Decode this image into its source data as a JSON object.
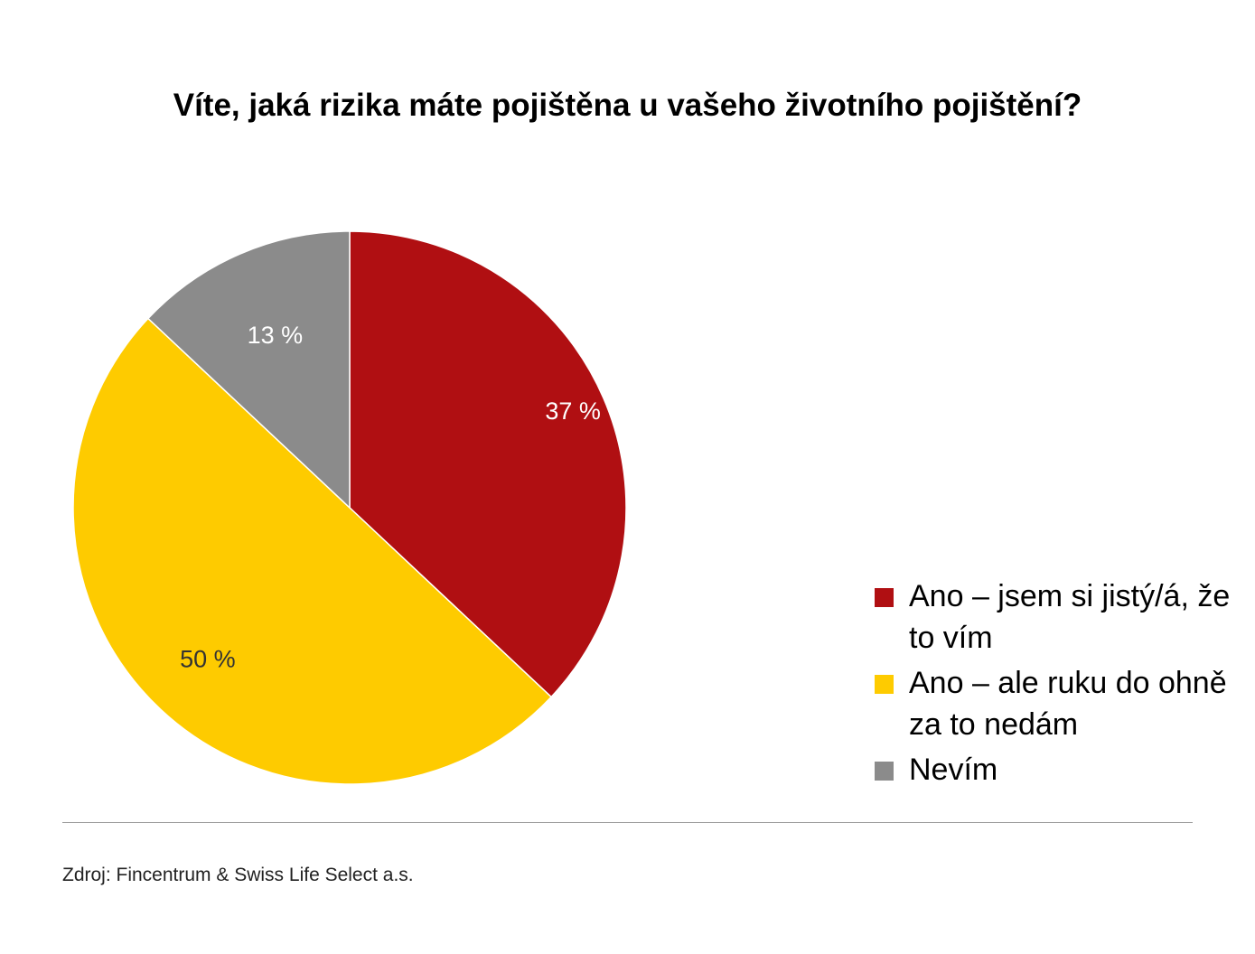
{
  "chart_data": {
    "type": "pie",
    "title": "Víte, jaká rizika máte pojištěna u vašeho životního pojištění?",
    "slices": [
      {
        "label": "Ano – jsem si jistý/á, že to vím",
        "value": 37,
        "display": "37 %",
        "color": "#b00f12",
        "label_color": "#ffffff"
      },
      {
        "label": "Ano – ale ruku do ohně za to nedám",
        "value": 50,
        "display": "50 %",
        "color": "#fecb00",
        "label_color": "#333333"
      },
      {
        "label": "Nevím",
        "value": 13,
        "display": "13 %",
        "color": "#8b8b8b",
        "label_color": "#ffffff"
      }
    ],
    "start_angle": "12 o'clock",
    "direction": "clockwise",
    "legend_position": "right-bottom"
  },
  "source": "Zdroj: Fincentrum & Swiss Life Select a.s."
}
